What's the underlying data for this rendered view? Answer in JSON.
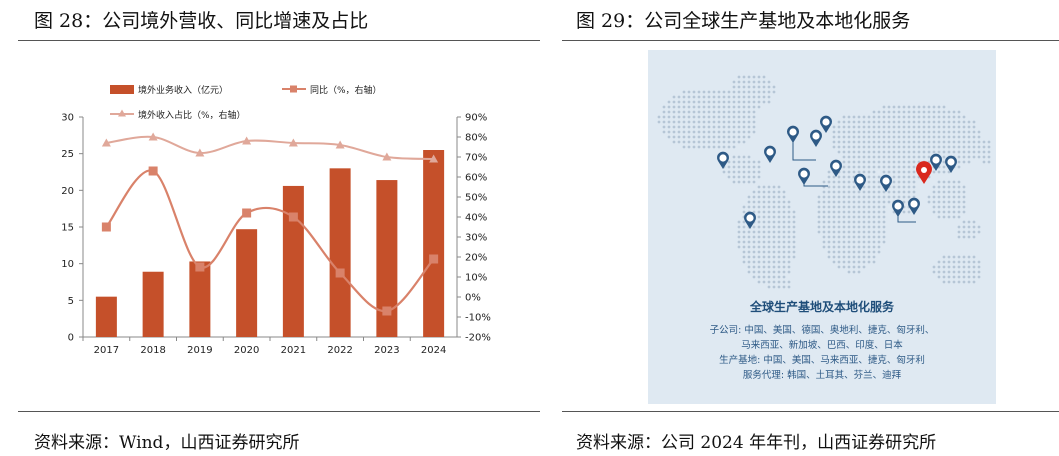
{
  "left_panel": {
    "title": "图 28：公司境外营收、同比增速及占比",
    "source": "资料来源：Wind，山西证券研究所"
  },
  "right_panel": {
    "title": "图 29：公司全球生产基地及本地化服务",
    "source": "资料来源：公司 2024 年年刊，山西证券研究所",
    "map_title": "全球生产基地及本地化服务",
    "map_lines": [
      "子公司: 中国、美国、德国、奥地利、捷克、匈牙利、",
      "马来西亚、新加坡、巴西、印度、日本",
      "生产基地: 中国、美国、马来西亚、捷克、匈牙利",
      "服务代理: 韩国、土耳其、芬兰、迪拜"
    ],
    "colors": {
      "map_bg": "#dfe9f2",
      "land_dots": "#b6c6d6",
      "pin": "#2e5a86",
      "china_pin": "#d9281d"
    }
  },
  "chart_data": {
    "type": "bar",
    "categories": [
      "2017",
      "2018",
      "2019",
      "2020",
      "2021",
      "2022",
      "2023",
      "2024"
    ],
    "series": [
      {
        "name": "境外业务收入（亿元）",
        "type": "bar",
        "axis": "left",
        "color": "#c5502a",
        "values": [
          5.5,
          8.9,
          10.3,
          14.7,
          20.6,
          23.0,
          21.4,
          25.5
        ]
      },
      {
        "name": "同比（%，右轴）",
        "type": "line",
        "axis": "right",
        "color": "#d9826a",
        "values": [
          35,
          63,
          15,
          42,
          40,
          12,
          -7,
          19
        ]
      },
      {
        "name": "境外收入占比（%，右轴）",
        "type": "line",
        "axis": "right",
        "color": "#e0a89a",
        "values": [
          77,
          80,
          72,
          78,
          77,
          76,
          70,
          69
        ]
      }
    ],
    "y_left": {
      "min": 0,
      "max": 30,
      "ticks": [
        0,
        5,
        10,
        15,
        20,
        25,
        30
      ]
    },
    "y_right": {
      "min": -20,
      "max": 90,
      "ticks": [
        "-20%",
        "-10%",
        "0%",
        "10%",
        "20%",
        "30%",
        "40%",
        "50%",
        "60%",
        "70%",
        "80%",
        "90%"
      ]
    },
    "legend_position": "top",
    "grid": false
  }
}
